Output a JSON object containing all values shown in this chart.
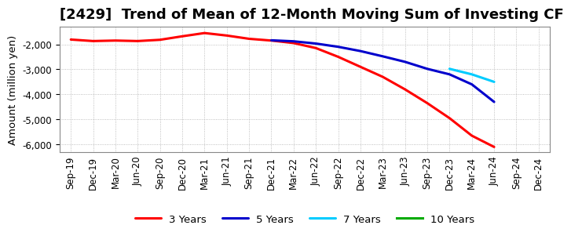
{
  "title": "[2429]  Trend of Mean of 12-Month Moving Sum of Investing CF",
  "ylabel": "Amount (million yen)",
  "background_color": "#ffffff",
  "plot_background": "#ffffff",
  "grid_color": "#999999",
  "ylim": [
    -6300,
    -1300
  ],
  "yticks": [
    -6000,
    -5000,
    -4000,
    -3000,
    -2000
  ],
  "series": {
    "3yr": {
      "color": "#ff0000",
      "label": "3 Years",
      "x": [
        "Sep-19",
        "Dec-19",
        "Mar-20",
        "Jun-20",
        "Sep-20",
        "Dec-20",
        "Mar-21",
        "Jun-21",
        "Sep-21",
        "Dec-21",
        "Mar-22",
        "Jun-22",
        "Sep-22",
        "Dec-22",
        "Mar-23",
        "Jun-23",
        "Sep-23",
        "Dec-23",
        "Mar-24",
        "Jun-24"
      ],
      "y": [
        -1810,
        -1870,
        -1850,
        -1870,
        -1820,
        -1680,
        -1550,
        -1650,
        -1780,
        -1850,
        -1950,
        -2150,
        -2500,
        -2900,
        -3300,
        -3800,
        -4350,
        -4950,
        -5650,
        -6100
      ]
    },
    "5yr": {
      "color": "#0000cc",
      "label": "5 Years",
      "x": [
        "Dec-21",
        "Mar-22",
        "Jun-22",
        "Sep-22",
        "Dec-22",
        "Mar-23",
        "Jun-23",
        "Sep-23",
        "Dec-23",
        "Mar-24",
        "Jun-24"
      ],
      "y": [
        -1840,
        -1880,
        -1970,
        -2100,
        -2270,
        -2480,
        -2700,
        -2980,
        -3200,
        -3600,
        -4300
      ]
    },
    "7yr": {
      "color": "#00ccff",
      "label": "7 Years",
      "x": [
        "Dec-23",
        "Mar-24",
        "Jun-24"
      ],
      "y": [
        -2980,
        -3200,
        -3500
      ]
    },
    "10yr": {
      "color": "#00aa00",
      "label": "10 Years",
      "x": [],
      "y": []
    }
  },
  "x_labels": [
    "Sep-19",
    "Dec-19",
    "Mar-20",
    "Jun-20",
    "Sep-20",
    "Dec-20",
    "Mar-21",
    "Jun-21",
    "Sep-21",
    "Dec-21",
    "Mar-22",
    "Jun-22",
    "Sep-22",
    "Dec-22",
    "Mar-23",
    "Jun-23",
    "Sep-23",
    "Dec-23",
    "Mar-24",
    "Jun-24",
    "Sep-24",
    "Dec-24"
  ],
  "legend_colors": {
    "3yr": "#ff0000",
    "5yr": "#0000cc",
    "7yr": "#00ccff",
    "10yr": "#00aa00"
  },
  "legend_labels": {
    "3yr": "3 Years",
    "5yr": "5 Years",
    "7yr": "7 Years",
    "10yr": "10 Years"
  },
  "linewidth": 2.2,
  "title_fontsize": 13,
  "tick_fontsize": 8.5,
  "label_fontsize": 9.5
}
